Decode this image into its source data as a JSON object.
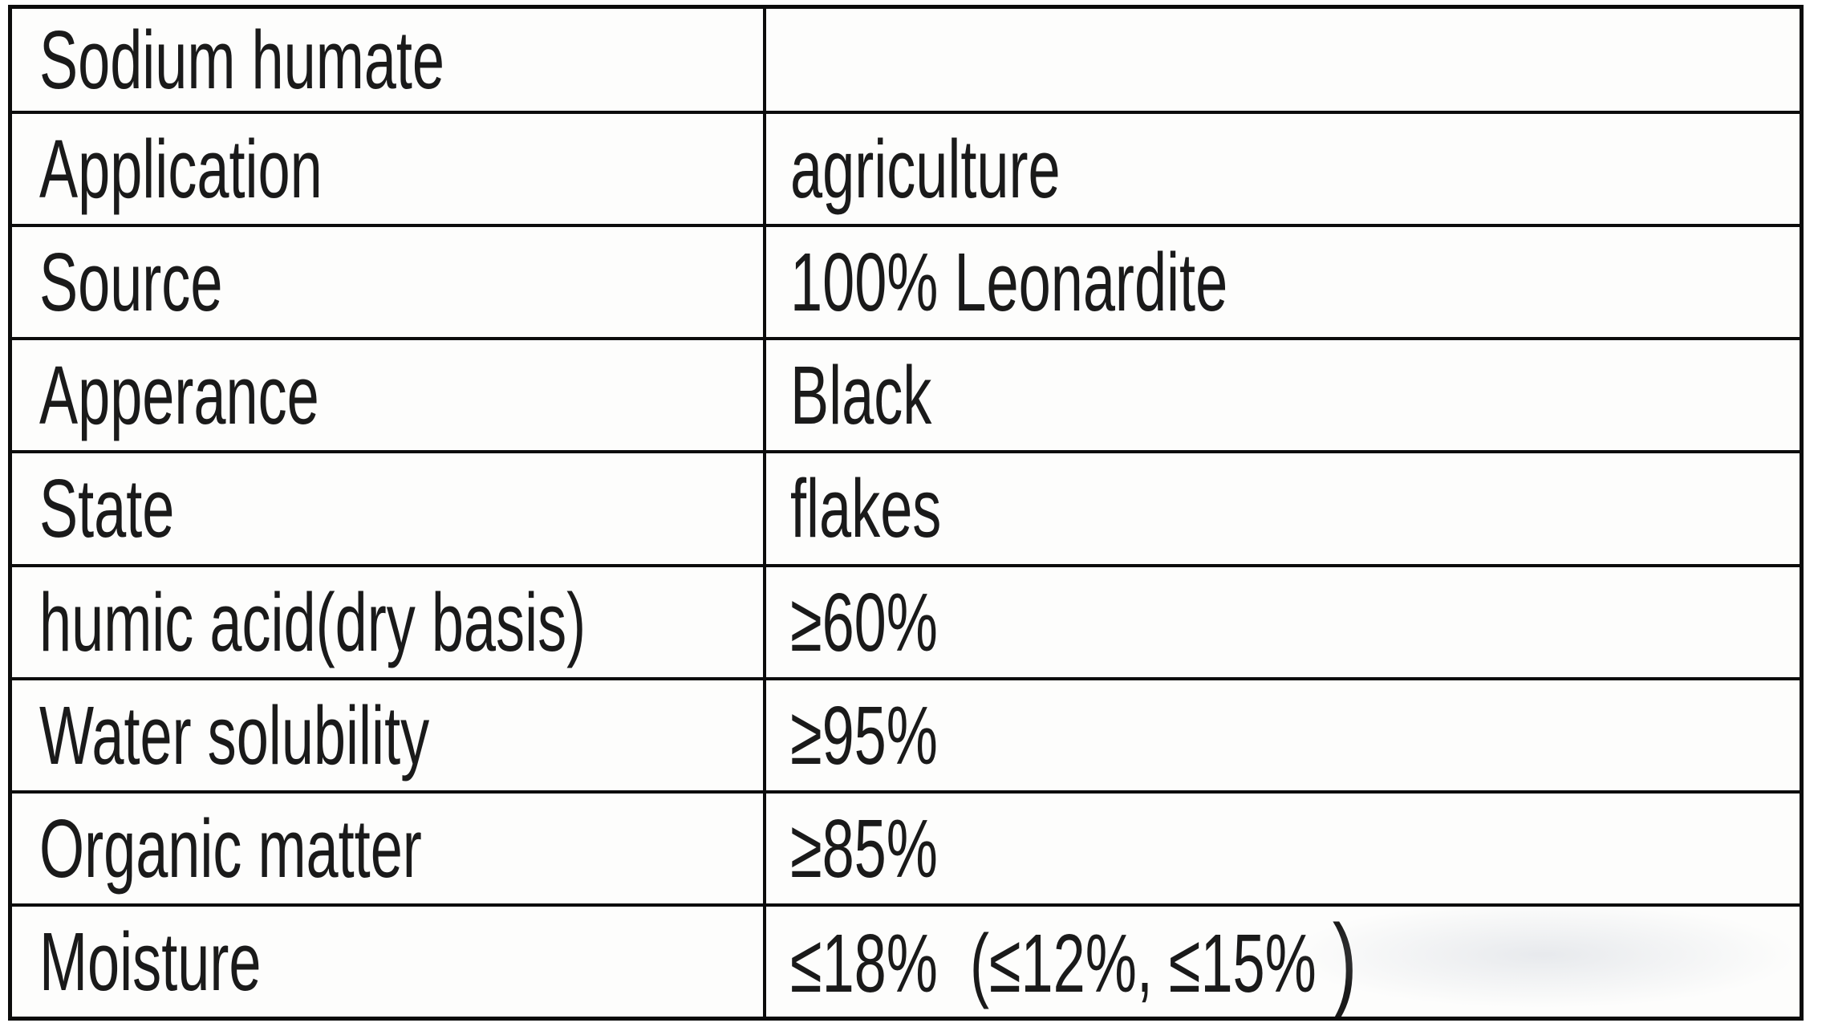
{
  "table": {
    "title_row_label": "Sodium humate",
    "colors": {
      "border": "#0c0c0c",
      "text": "#1a1a1a",
      "background": "#fdfdfc"
    },
    "rows": [
      {
        "label": "Sodium humate",
        "value": ""
      },
      {
        "label": "Application",
        "value": "agriculture"
      },
      {
        "label": "Source",
        "value": "100% Leonardite"
      },
      {
        "label": "Apperance",
        "value": "Black"
      },
      {
        "label": "State",
        "value": "flakes"
      },
      {
        "label": "humic acid(dry basis)",
        "value": "≥60%"
      },
      {
        "label": "Water solubility",
        "value": "≥95%"
      },
      {
        "label": "Organic matter",
        "value": "≥85%"
      },
      {
        "label": "Moisture",
        "value": "≤18%  (≤12%, ≤15% ",
        "closing_paren": ")"
      }
    ]
  }
}
